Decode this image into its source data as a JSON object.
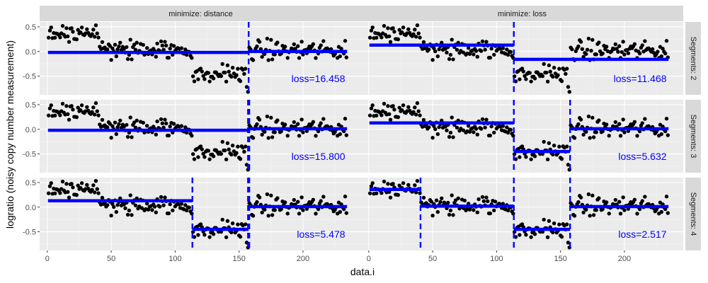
{
  "chart_data": {
    "type": "scatter",
    "xlabel": "data.i",
    "ylabel": "logratio (noisy copy number measurement)",
    "xlim": [
      -6,
      246
    ],
    "ylim": [
      -0.88,
      0.6
    ],
    "x_ticks": [
      0,
      50,
      100,
      150,
      200
    ],
    "y_ticks": [
      0.5,
      0.0,
      -0.5
    ],
    "y_tick_labels": [
      "0.5",
      "0.0",
      "-0.5"
    ],
    "grid": true,
    "point_color": "#000000",
    "model_color": "#0000ff",
    "column_prefix": "minimize: ",
    "row_prefix": "Segments: ",
    "columns": [
      "distance",
      "loss"
    ],
    "rows": [
      "2",
      "3",
      "4"
    ],
    "true_segments": [
      {
        "start": 1,
        "end": 40,
        "mean": 0.38
      },
      {
        "start": 41,
        "end": 113,
        "mean": 0.03
      },
      {
        "start": 114,
        "end": 157,
        "mean": -0.45
      },
      {
        "start": 158,
        "end": 234,
        "mean": 0.02
      }
    ],
    "panels": [
      {
        "column": "distance",
        "rows": "2",
        "loss_label": "loss=16.458",
        "segments": [
          {
            "start": 1,
            "end": 157,
            "mean": -0.02
          },
          {
            "start": 158,
            "end": 234,
            "mean": 0.0
          }
        ],
        "changepoints": [
          157.5
        ]
      },
      {
        "column": "loss",
        "rows": "2",
        "loss_label": "loss=11.468",
        "segments": [
          {
            "start": 1,
            "end": 113,
            "mean": 0.13
          },
          {
            "start": 114,
            "end": 234,
            "mean": -0.16
          }
        ],
        "changepoints": [
          113.5
        ]
      },
      {
        "column": "distance",
        "rows": "3",
        "loss_label": "loss=15.800",
        "segments": [
          {
            "start": 1,
            "end": 157,
            "mean": -0.02
          },
          {
            "start": 158,
            "end": 234,
            "mean": 0.01
          }
        ],
        "changepoints": [
          157.0,
          158.0
        ]
      },
      {
        "column": "loss",
        "rows": "3",
        "loss_label": "loss=5.632",
        "segments": [
          {
            "start": 1,
            "end": 113,
            "mean": 0.13
          },
          {
            "start": 114,
            "end": 157,
            "mean": -0.45
          },
          {
            "start": 158,
            "end": 234,
            "mean": 0.01
          }
        ],
        "changepoints": [
          113.5,
          157.5
        ]
      },
      {
        "column": "distance",
        "rows": "4",
        "loss_label": "loss=5.478",
        "segments": [
          {
            "start": 1,
            "end": 113,
            "mean": 0.13
          },
          {
            "start": 114,
            "end": 157,
            "mean": -0.45
          },
          {
            "start": 158,
            "end": 234,
            "mean": 0.01
          }
        ],
        "changepoints": [
          113.5,
          157.0,
          158.0
        ]
      },
      {
        "column": "loss",
        "rows": "4",
        "loss_label": "loss=2.517",
        "segments": [
          {
            "start": 1,
            "end": 40,
            "mean": 0.36
          },
          {
            "start": 41,
            "end": 113,
            "mean": 0.02
          },
          {
            "start": 114,
            "end": 157,
            "mean": -0.45
          },
          {
            "start": 158,
            "end": 234,
            "mean": 0.01
          }
        ],
        "changepoints": [
          40.5,
          113.5,
          157.5
        ]
      }
    ]
  }
}
